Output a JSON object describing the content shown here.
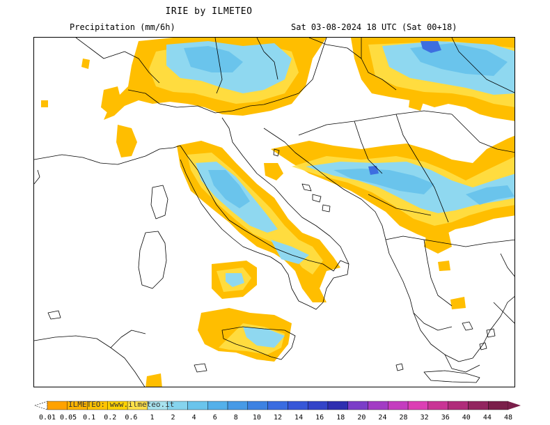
{
  "header": {
    "title": "IRIE by ILMETEO",
    "variable": "Precipitation (mm/6h)",
    "valid_time": "Sat 03-08-2024 18 UTC (Sat 00+18)"
  },
  "legend": {
    "watermark": "ILMETEO: www.ilmeteo.it",
    "labels": [
      "0.01",
      "0.05",
      "0.1",
      "0.2",
      "0.6",
      "1",
      "2",
      "4",
      "6",
      "8",
      "10",
      "12",
      "14",
      "16",
      "18",
      "20",
      "24",
      "28",
      "32",
      "36",
      "40",
      "44",
      "48"
    ],
    "colors": [
      "#ffa200",
      "#ffb400",
      "#ffc400",
      "#ffd300",
      "#ffe24a",
      "#a8e3ef",
      "#86d4ee",
      "#6ac4ec",
      "#54b0ea",
      "#479ae6",
      "#3d82e2",
      "#3a6ce0",
      "#3757d8",
      "#3344c8",
      "#2f2fb0",
      "#7b3ec8",
      "#a23cc4",
      "#c43dbf",
      "#dc3fb4",
      "#c93595",
      "#b02c7a",
      "#92255f",
      "#7a1f4a"
    ]
  },
  "map": {
    "precip_colors": {
      "light": "#ffbe00",
      "moderate": "#ffe24a",
      "heavy": "#8fd8f0",
      "very_heavy": "#6ac4ec",
      "extreme": "#3d6ee0"
    }
  }
}
